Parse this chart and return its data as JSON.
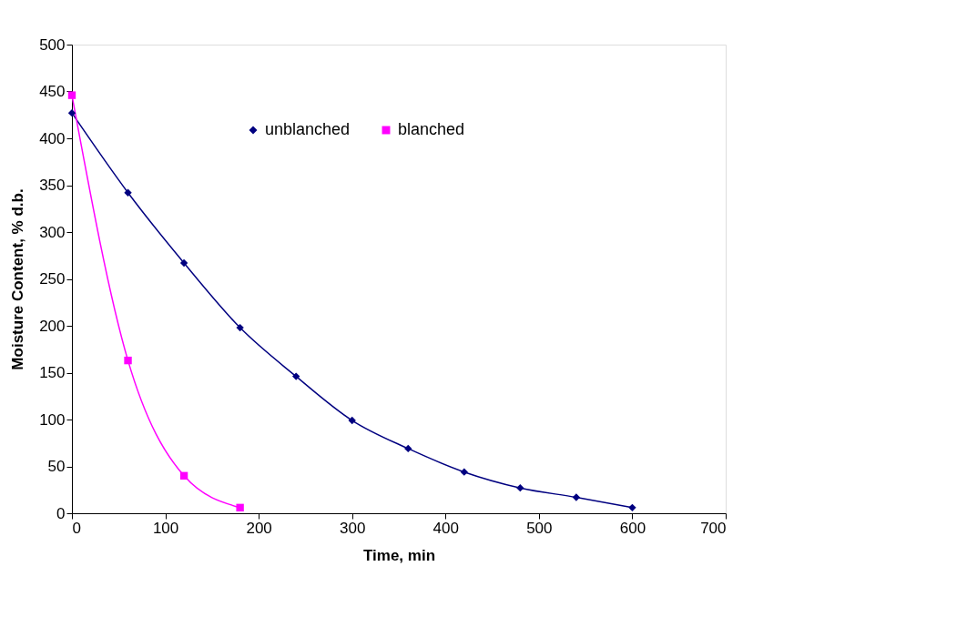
{
  "chart_data": {
    "type": "line",
    "xlabel": "Time, min",
    "ylabel": "Moisture Content, % d.b.",
    "xlim": [
      0,
      700
    ],
    "ylim": [
      0,
      500
    ],
    "xticks": [
      0,
      100,
      200,
      300,
      400,
      500,
      600,
      700
    ],
    "yticks": [
      0,
      50,
      100,
      150,
      200,
      250,
      300,
      350,
      400,
      450,
      500
    ],
    "grid": false,
    "legend": "top",
    "series": [
      {
        "name": "unblanched",
        "color": "#000080",
        "marker": "diamond",
        "x": [
          0,
          60,
          120,
          180,
          240,
          300,
          360,
          420,
          480,
          540,
          600
        ],
        "values": [
          427,
          342,
          267,
          198,
          146,
          99,
          69,
          44,
          27,
          17,
          6
        ]
      },
      {
        "name": "blanched",
        "color": "#ff00ff",
        "marker": "square",
        "x": [
          0,
          60,
          120,
          180
        ],
        "values": [
          446,
          163,
          40,
          6
        ]
      }
    ]
  }
}
